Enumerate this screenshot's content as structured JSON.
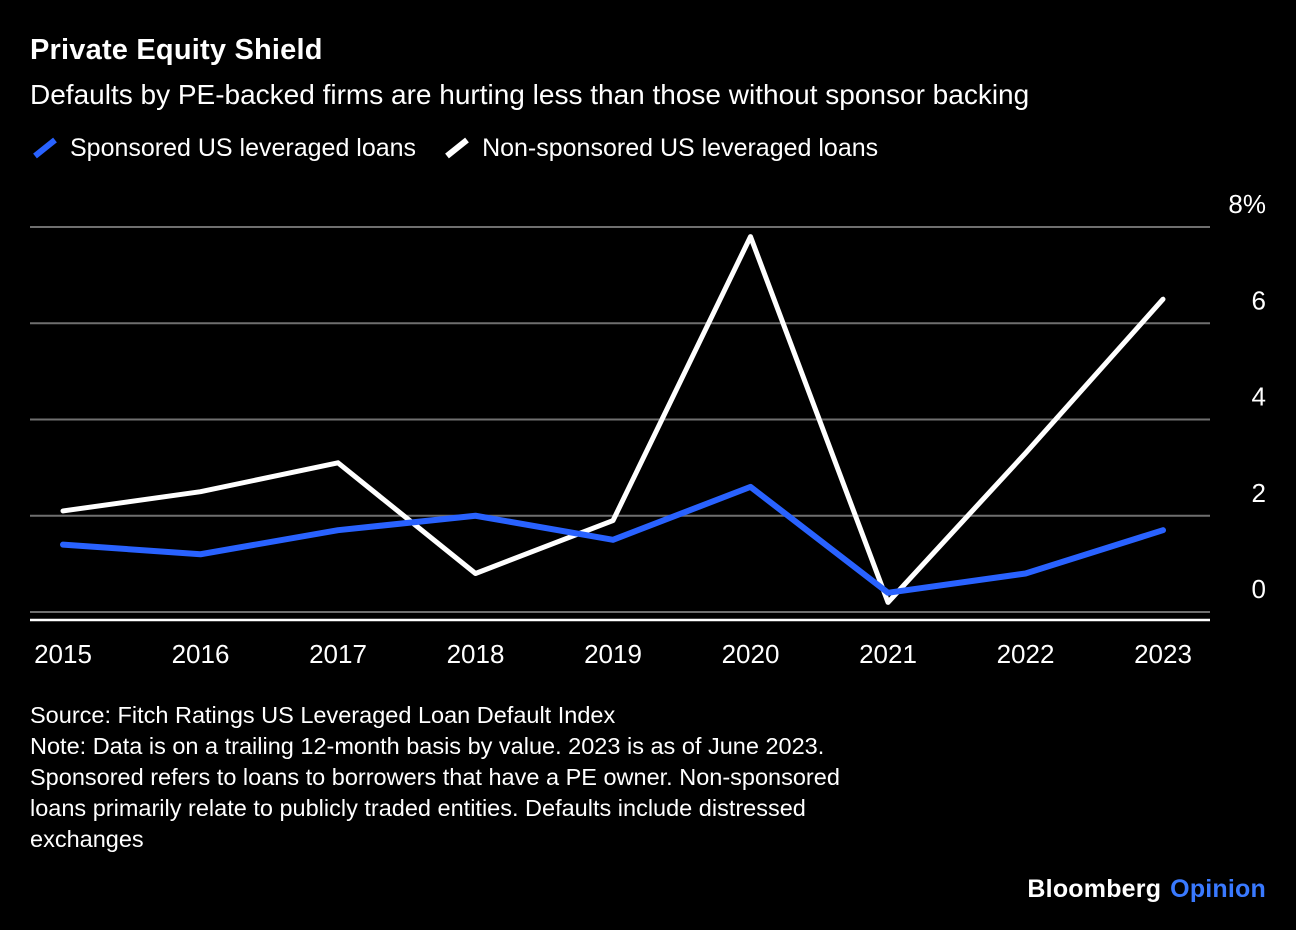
{
  "header": {
    "title": "Private Equity Shield",
    "subtitle": "Defaults by PE-backed firms are hurting less than those without sponsor backing"
  },
  "chart_data": {
    "type": "line",
    "title": "Private Equity Shield",
    "subtitle": "Defaults by PE-backed firms are hurting less than those without sponsor backing",
    "x": [
      2015,
      2016,
      2017,
      2018,
      2019,
      2020,
      2021,
      2022,
      2023
    ],
    "series": [
      {
        "id": "sponsored",
        "name": "Sponsored US leveraged loans",
        "color": "#2962ff",
        "width": 6,
        "values": [
          1.4,
          1.2,
          1.7,
          2.0,
          1.5,
          2.6,
          0.4,
          0.8,
          1.7
        ]
      },
      {
        "id": "non-sponsored",
        "name": "Non-sponsored US leveraged loans",
        "color": "#ffffff",
        "width": 5,
        "values": [
          2.1,
          2.5,
          3.1,
          0.8,
          1.9,
          7.8,
          0.2,
          3.3,
          6.5
        ]
      }
    ],
    "ylim": [
      0,
      8
    ],
    "yticks": [
      0,
      2,
      4,
      6,
      8
    ],
    "ytick_labels": [
      "0",
      "2",
      "4",
      "6",
      "8%"
    ],
    "xlabel": "",
    "ylabel": "",
    "grid": "horizontal",
    "legend_position": "top-left",
    "ytick_position": "right",
    "unit": "percent"
  },
  "footer": {
    "source": "Source: Fitch Ratings US Leveraged Loan Default Index",
    "note": "Note: Data is on a trailing 12-month basis by value. 2023 is as of June 2023. Sponsored refers to loans to borrowers that have a PE owner. Non-sponsored loans primarily relate to publicly traded entities. Defaults include distressed exchanges",
    "note_lines": [
      "Note: Data is on a trailing 12-month basis by value. 2023 is as of June 2023.",
      "Sponsored refers to loans to borrowers that have a PE owner. Non-sponsored",
      "loans primarily relate to publicly traded entities. Defaults include distressed",
      "exchanges"
    ],
    "brand": {
      "name": "Bloomberg",
      "edition": "Opinion"
    }
  },
  "colors": {
    "background": "#000000",
    "text": "#ffffff",
    "grid": "#6f6f6f",
    "axis": "#ffffff",
    "sponsored_blue": "#2962ff",
    "non_sponsored_white": "#ffffff",
    "opinion_blue": "#3979ff"
  }
}
